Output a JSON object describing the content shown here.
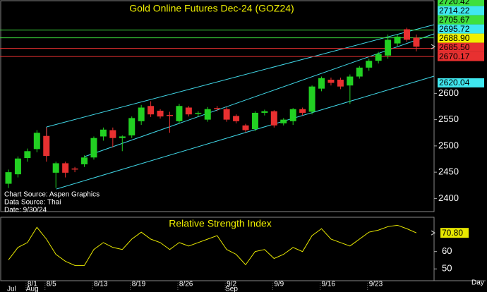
{
  "chart_data": [
    {
      "type": "candlestick",
      "title": "Gold Online Futures Dec-24 (GOZ24)",
      "categories": [
        null,
        null,
        "8/1",
        null,
        "8/5",
        null,
        null,
        null,
        null,
        "8/13",
        null,
        null,
        null,
        "8/19",
        null,
        null,
        null,
        null,
        "8/26",
        null,
        null,
        null,
        null,
        "9/2",
        null,
        null,
        null,
        null,
        "9/9",
        null,
        null,
        null,
        null,
        "9/16",
        null,
        null,
        null,
        null,
        "9/23",
        null,
        null,
        null,
        null,
        null
      ],
      "months": [
        "Jul",
        null,
        "Aug",
        null,
        null,
        null,
        null,
        null,
        null,
        null,
        null,
        null,
        null,
        null,
        null,
        null,
        null,
        null,
        null,
        null,
        null,
        null,
        null,
        "Sep",
        null,
        null,
        null,
        null,
        null,
        null,
        null,
        null,
        null,
        null,
        null,
        null,
        null,
        null,
        null,
        null,
        null,
        null,
        null,
        null
      ],
      "open": [
        2428,
        2446,
        2477,
        2494,
        2519,
        2449,
        2467,
        2457,
        2465,
        2478,
        2518,
        2530,
        2515,
        2520,
        2547,
        2576,
        2567,
        2559,
        2547,
        2573,
        2561,
        2550,
        2572,
        2570,
        2557,
        2539,
        2532,
        2563,
        2566,
        2543,
        2547,
        2570,
        2565,
        2609,
        2626,
        2626,
        2615,
        2632,
        2649,
        2662,
        2672,
        2695,
        2722,
        2706
      ],
      "high": [
        2455,
        2480,
        2495,
        2530,
        2535,
        2470,
        2470,
        2460,
        2482,
        2518,
        2535,
        2535,
        2520,
        2556,
        2578,
        2585,
        2570,
        2565,
        2580,
        2576,
        2566,
        2574,
        2576,
        2574,
        2560,
        2542,
        2566,
        2569,
        2568,
        2553,
        2572,
        2573,
        2615,
        2632,
        2630,
        2630,
        2636,
        2652,
        2666,
        2679,
        2712,
        2712,
        2725,
        2712
      ],
      "low": [
        2420,
        2440,
        2470,
        2488,
        2470,
        2420,
        2440,
        2450,
        2460,
        2474,
        2510,
        2497,
        2490,
        2515,
        2540,
        2555,
        2552,
        2525,
        2543,
        2556,
        2556,
        2546,
        2566,
        2546,
        2543,
        2526,
        2528,
        2558,
        2535,
        2539,
        2540,
        2558,
        2560,
        2604,
        2615,
        2608,
        2580,
        2628,
        2643,
        2657,
        2666,
        2690,
        2698,
        2680
      ],
      "close": [
        2450,
        2476,
        2490,
        2525,
        2481,
        2467,
        2449,
        2455,
        2478,
        2515,
        2531,
        2515,
        2518,
        2553,
        2573,
        2560,
        2556,
        2557,
        2576,
        2560,
        2563,
        2570,
        2570,
        2550,
        2547,
        2530,
        2563,
        2566,
        2539,
        2550,
        2570,
        2563,
        2613,
        2629,
        2620,
        2613,
        2632,
        2649,
        2662,
        2675,
        2702,
        2708,
        2702,
        2688.9
      ],
      "up_color": "#22d022",
      "down_color": "#e83030",
      "ylim": [
        2375,
        2775
      ],
      "yticks": [
        2400,
        2450,
        2500,
        2550,
        2600
      ],
      "levels": [
        {
          "value": 2720.42,
          "label": "2720.42",
          "color": "#3ee03e",
          "line": true
        },
        {
          "value": 2714.22,
          "label": "2714.22",
          "color": "#40e8f0",
          "line": false
        },
        {
          "value": 2705.67,
          "label": "2705.67",
          "color": "#3ee03e",
          "line": true
        },
        {
          "value": 2695.72,
          "label": "2695.72",
          "color": "#40e8f0",
          "line": false
        },
        {
          "value": 2688.9,
          "label": "2688.90",
          "color": "#f0f000",
          "line": false
        },
        {
          "value": 2685.5,
          "label": "2685.50",
          "color": "#e83030",
          "line": true
        },
        {
          "value": 2670.17,
          "label": "2670.17",
          "color": "#e83030",
          "line": true
        },
        {
          "value": 2620.04,
          "label": "2620.04",
          "color": "#40e8f0",
          "line": false
        }
      ],
      "annotations": [
        "Chart Source: Aspen Graphics",
        "Data Source: Thai",
        "Date: 9/30/24"
      ]
    },
    {
      "type": "line",
      "title": "Relative Strength Index",
      "color": "#e8e800",
      "values": [
        55.2,
        62.4,
        65.2,
        74,
        67.2,
        58.4,
        54.4,
        52,
        52,
        61.2,
        65.2,
        62.4,
        61.2,
        67.2,
        71.2,
        67.2,
        65.2,
        61.2,
        65.2,
        63.2,
        65.2,
        67.2,
        69.2,
        61.2,
        58.4,
        52.4,
        60,
        61.2,
        56,
        58.4,
        62.4,
        60,
        69.2,
        73.2,
        67.2,
        65.2,
        63.2,
        67.2,
        71.2,
        72.4,
        74.4,
        75.2,
        73.2,
        70.8
      ],
      "last_value_label": "70.80",
      "ylim": [
        44,
        79
      ],
      "yticks": [
        50,
        60
      ],
      "x_label": "Day"
    }
  ]
}
